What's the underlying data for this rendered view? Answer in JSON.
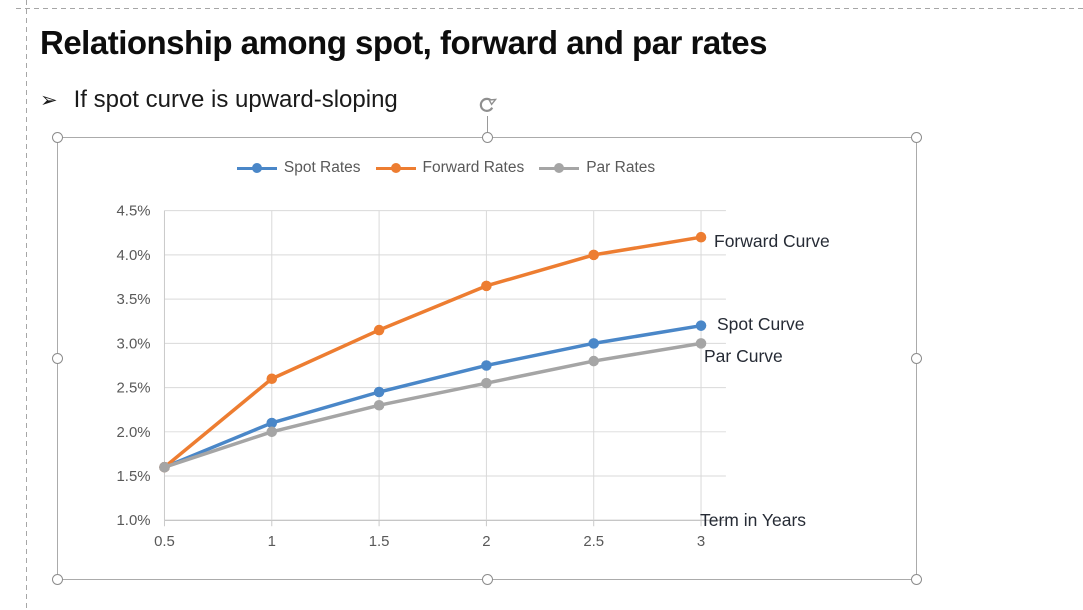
{
  "slide": {
    "title": "Relationship among spot, forward and par rates",
    "bullet_glyph": "➢",
    "bullet": "If spot curve is upward-sloping"
  },
  "chart": {
    "legend": [
      {
        "label": "Spot Rates",
        "color": "#4a87c8"
      },
      {
        "label": "Forward Rates",
        "color": "#ed7d31"
      },
      {
        "label": "Par Rates",
        "color": "#a5a5a5"
      }
    ],
    "annotations": {
      "forward": "Forward Curve",
      "spot": "Spot Curve",
      "par": "Par Curve"
    }
  },
  "chart_data": {
    "type": "line",
    "x": [
      0.5,
      1,
      1.5,
      2,
      2.5,
      3
    ],
    "x_tick_labels": [
      "0.5",
      "1",
      "1.5",
      "2",
      "2.5",
      "3"
    ],
    "y_tick_labels": [
      "1.0%",
      "1.5%",
      "2.0%",
      "2.5%",
      "3.0%",
      "3.5%",
      "4.0%",
      "4.5%"
    ],
    "ylim": [
      1.0,
      4.5
    ],
    "y_step": 0.5,
    "grid": true,
    "legend_position": "top",
    "xlabel": "Term in Years",
    "series": [
      {
        "name": "Spot Rates",
        "color": "#4a87c8",
        "values": [
          1.6,
          2.1,
          2.45,
          2.75,
          3.0,
          3.2
        ]
      },
      {
        "name": "Forward Rates",
        "color": "#ed7d31",
        "values": [
          1.6,
          2.6,
          3.15,
          3.65,
          4.0,
          4.2
        ]
      },
      {
        "name": "Par Rates",
        "color": "#a5a5a5",
        "values": [
          1.6,
          2.0,
          2.3,
          2.55,
          2.8,
          3.0
        ]
      }
    ],
    "axis_text_color": "#595959",
    "gridline_color": "#d9d9d9",
    "axis_line_color": "#b3b3b3"
  }
}
